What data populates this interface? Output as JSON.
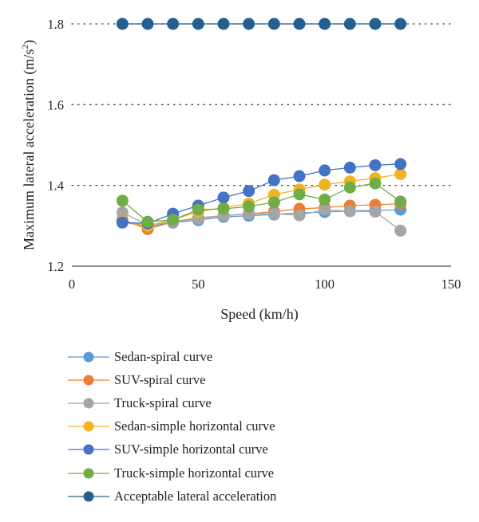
{
  "chart_data": {
    "type": "line",
    "xlabel": "Speed (km/h)",
    "ylabel_main": "Maximum lateral acceleration (m/s",
    "ylabel_sup": "2",
    "ylabel_end": ")",
    "xlim": [
      0,
      150
    ],
    "ylim": [
      1.2,
      1.8
    ],
    "xticks": [
      0,
      50,
      100,
      150
    ],
    "yticks": [
      1.2,
      1.4,
      1.6,
      1.8
    ],
    "grid": "horizontal dotted",
    "legend_position": "bottom",
    "series": [
      {
        "name": "Sedan-spiral curve",
        "color": "#5b9bd5",
        "x": [
          20,
          30,
          40,
          50,
          60,
          70,
          80,
          90,
          100,
          110,
          120,
          130
        ],
        "y": [
          1.31,
          1.298,
          1.308,
          1.314,
          1.322,
          1.325,
          1.328,
          1.332,
          1.334,
          1.337,
          1.338,
          1.34
        ]
      },
      {
        "name": "SUV-spiral curve",
        "color": "#ed7d31",
        "x": [
          20,
          30,
          40,
          50,
          60,
          70,
          80,
          90,
          100,
          110,
          120,
          130
        ],
        "y": [
          1.315,
          1.292,
          1.31,
          1.32,
          1.325,
          1.33,
          1.335,
          1.342,
          1.345,
          1.35,
          1.352,
          1.355
        ]
      },
      {
        "name": "Truck-spiral curve",
        "color": "#a5a5a5",
        "x": [
          20,
          30,
          40,
          50,
          60,
          70,
          80,
          90,
          100,
          110,
          120,
          130
        ],
        "y": [
          1.333,
          1.302,
          1.31,
          1.318,
          1.325,
          1.33,
          1.33,
          1.326,
          1.34,
          1.336,
          1.335,
          1.288
        ]
      },
      {
        "name": "Sedan-simple horizontal curve",
        "color": "#f0b323",
        "x": [
          20,
          30,
          40,
          50,
          60,
          70,
          80,
          90,
          100,
          110,
          120,
          130
        ],
        "y": [
          1.31,
          1.3,
          1.315,
          1.335,
          1.345,
          1.355,
          1.377,
          1.39,
          1.402,
          1.41,
          1.418,
          1.428
        ]
      },
      {
        "name": "SUV-simple horizontal curve",
        "color": "#4472c4",
        "x": [
          20,
          30,
          40,
          50,
          60,
          70,
          80,
          90,
          100,
          110,
          120,
          130
        ],
        "y": [
          1.308,
          1.306,
          1.33,
          1.35,
          1.37,
          1.386,
          1.413,
          1.423,
          1.437,
          1.444,
          1.45,
          1.453
        ]
      },
      {
        "name": "Truck-simple horizontal curve",
        "color": "#70ad47",
        "x": [
          20,
          30,
          40,
          50,
          60,
          70,
          80,
          90,
          100,
          110,
          120,
          130
        ],
        "y": [
          1.362,
          1.31,
          1.315,
          1.34,
          1.342,
          1.348,
          1.358,
          1.378,
          1.365,
          1.395,
          1.405,
          1.36
        ]
      },
      {
        "name": "Acceptable lateral acceleration",
        "color": "#255e91",
        "x": [
          20,
          30,
          40,
          50,
          60,
          70,
          80,
          90,
          100,
          110,
          120,
          130
        ],
        "y": [
          1.8,
          1.8,
          1.8,
          1.8,
          1.8,
          1.8,
          1.8,
          1.8,
          1.8,
          1.8,
          1.8,
          1.8
        ]
      }
    ]
  }
}
